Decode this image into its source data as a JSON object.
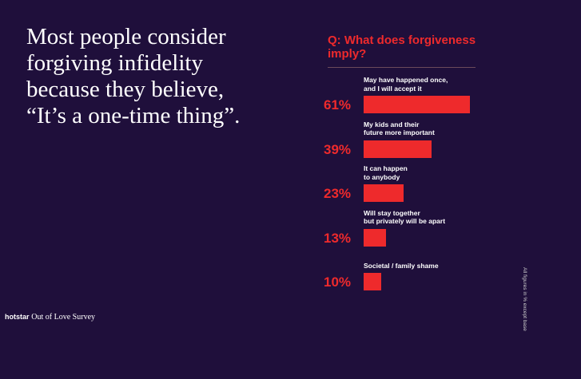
{
  "headline": "Most people consider forgiving infidelity because they believe, “It’s a one-time thing”.",
  "footer": {
    "brand": "hotstar",
    "survey": "Out of Love Survey"
  },
  "side_note": "All figures in % except base",
  "chart_data": {
    "type": "bar",
    "orientation": "horizontal",
    "title": "Q: What does forgiveness imply?",
    "categories": [
      "May have happened once,\nand I will accept it",
      "My kids and their\nfuture more important",
      "It can happen\nto anybody",
      "Will stay together\nbut privately will be apart",
      "Societal / family shame"
    ],
    "values": [
      61,
      39,
      23,
      13,
      10
    ],
    "value_labels": [
      "61%",
      "39%",
      "23%",
      "13%",
      "10%"
    ],
    "color": "#ee2a2c"
  }
}
